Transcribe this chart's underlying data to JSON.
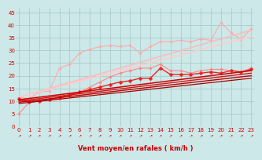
{
  "xlabel": "Vent moyen/en rafales ( km/h )",
  "xlim": [
    -0.3,
    23.3
  ],
  "ylim": [
    0,
    47
  ],
  "yticks": [
    0,
    5,
    10,
    15,
    20,
    25,
    30,
    35,
    40,
    45
  ],
  "xticks": [
    0,
    1,
    2,
    3,
    4,
    5,
    6,
    7,
    8,
    9,
    10,
    11,
    12,
    13,
    14,
    15,
    16,
    17,
    18,
    19,
    20,
    21,
    22,
    23
  ],
  "bg_color": "#cce8e8",
  "grid_color": "#aacccc",
  "lines": [
    {
      "comment": "light pink jagged line with small markers, starts x=0",
      "color": "#ffaaaa",
      "lw": 0.8,
      "marker": "D",
      "markersize": 1.8,
      "x": [
        0,
        1,
        2,
        3,
        4,
        5,
        6,
        7,
        8,
        9,
        10,
        11,
        12,
        13,
        14,
        15,
        16,
        17,
        18,
        19,
        20,
        21,
        22,
        23
      ],
      "y": [
        11.5,
        11.0,
        13.5,
        14.0,
        23.0,
        24.5,
        29.0,
        30.5,
        31.5,
        32.0,
        31.5,
        32.0,
        29.0,
        31.5,
        33.5,
        33.5,
        34.0,
        33.5,
        34.5,
        34.0,
        41.0,
        37.0,
        34.5,
        38.5
      ]
    },
    {
      "comment": "straight light pink line no markers",
      "color": "#ffbbbb",
      "lw": 1.2,
      "marker": null,
      "x": [
        0,
        23
      ],
      "y": [
        11.5,
        38.0
      ]
    },
    {
      "comment": "straight lighter pink line no markers",
      "color": "#ffcccc",
      "lw": 1.2,
      "marker": null,
      "x": [
        0,
        23
      ],
      "y": [
        11.5,
        35.5
      ]
    },
    {
      "comment": "medium pink with markers - noisy line high up",
      "color": "#ff8888",
      "lw": 0.8,
      "marker": "D",
      "markersize": 1.8,
      "x": [
        0,
        1,
        2,
        3,
        4,
        5,
        6,
        7,
        8,
        9,
        10,
        11,
        12,
        13,
        14,
        15,
        16,
        17,
        18,
        19,
        20,
        21,
        22,
        23
      ],
      "y": [
        5.0,
        9.5,
        10.0,
        10.5,
        11.0,
        12.0,
        13.5,
        15.5,
        17.5,
        19.5,
        21.0,
        22.0,
        23.0,
        23.0,
        24.5,
        22.0,
        22.0,
        21.0,
        22.0,
        22.5,
        22.5,
        22.0,
        21.5,
        23.0
      ]
    },
    {
      "comment": "bright red with markers - main noisy line",
      "color": "#ee2222",
      "lw": 1.0,
      "marker": "D",
      "markersize": 2.5,
      "x": [
        0,
        1,
        2,
        3,
        4,
        5,
        6,
        7,
        8,
        9,
        10,
        11,
        12,
        13,
        14,
        15,
        16,
        17,
        18,
        19,
        20,
        21,
        22,
        23
      ],
      "y": [
        11.0,
        9.5,
        10.0,
        10.5,
        11.5,
        12.5,
        13.5,
        14.5,
        15.5,
        16.5,
        17.5,
        18.0,
        19.0,
        19.0,
        23.0,
        20.5,
        20.5,
        20.5,
        21.0,
        21.5,
        21.0,
        22.0,
        21.5,
        22.5
      ]
    },
    {
      "comment": "dark red diagonal straight line",
      "color": "#cc0000",
      "lw": 1.1,
      "marker": null,
      "x": [
        0,
        23
      ],
      "y": [
        10.5,
        22.0
      ]
    },
    {
      "comment": "dark red diagonal straight line 2",
      "color": "#dd1111",
      "lw": 1.0,
      "marker": null,
      "x": [
        0,
        23
      ],
      "y": [
        10.0,
        21.0
      ]
    },
    {
      "comment": "dark red diagonal straight line 3",
      "color": "#bb0000",
      "lw": 1.0,
      "marker": null,
      "x": [
        0,
        23
      ],
      "y": [
        9.5,
        20.0
      ]
    },
    {
      "comment": "darker red diagonal straight line 4",
      "color": "#aa0000",
      "lw": 0.9,
      "marker": null,
      "x": [
        0,
        23
      ],
      "y": [
        9.0,
        19.0
      ]
    }
  ],
  "arrow_color": "#cc0000",
  "font_color": "#cc0000",
  "tick_fontsize": 5.0,
  "xlabel_fontsize": 6.0
}
